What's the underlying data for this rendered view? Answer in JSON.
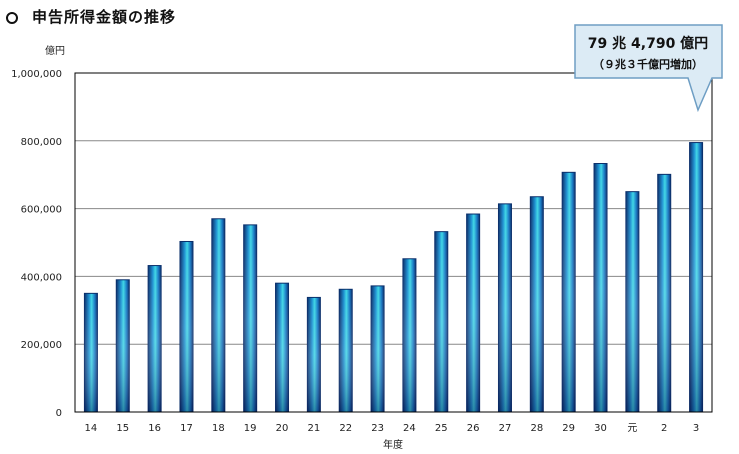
{
  "title": "申告所得金額の推移",
  "chart_data": {
    "type": "bar",
    "y_unit": "億円",
    "xlabel": "年度",
    "ylim": [
      0,
      1000000
    ],
    "y_ticks": [
      0,
      200000,
      400000,
      600000,
      800000,
      1000000
    ],
    "y_tick_labels": [
      "0",
      "200,000",
      "400,000",
      "600,000",
      "800,000",
      "1,000,000"
    ],
    "categories": [
      "14",
      "15",
      "16",
      "17",
      "18",
      "19",
      "20",
      "21",
      "22",
      "23",
      "24",
      "25",
      "26",
      "27",
      "28",
      "29",
      "30",
      "元",
      "2",
      "3"
    ],
    "values": [
      350000,
      390000,
      432000,
      503000,
      570000,
      552000,
      380000,
      338000,
      362000,
      372000,
      452000,
      532000,
      584000,
      614000,
      635000,
      707000,
      733000,
      650000,
      701000,
      794790
    ],
    "grid": "horizontal",
    "annotation": {
      "line1": "79 兆 4,790 億円",
      "line2": "（９兆３千億円増加）",
      "target_category": "3"
    },
    "colors": {
      "bar_edge": "#0a2f6b",
      "bar_mid": "#3fd7e6",
      "bar_dark": "#0d47a1",
      "callout_bg": "#dcebf5",
      "callout_border": "#6e9ec4"
    }
  }
}
